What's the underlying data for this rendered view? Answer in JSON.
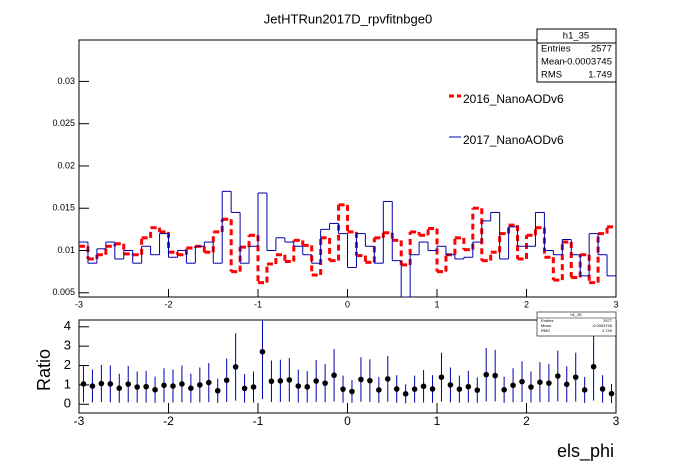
{
  "chart_data": [
    {
      "type": "histogram",
      "title": "JetHTRun2017D_rpvfitnbge0",
      "bins": [
        -3,
        -2.9,
        -2.8,
        -2.7,
        -2.6,
        -2.5,
        -2.4,
        -2.3,
        -2.2,
        -2.1,
        -2,
        -1.9,
        -1.8,
        -1.7,
        -1.6,
        -1.5,
        -1.4,
        -1.3,
        -1.2,
        -1.1,
        -1,
        -0.9,
        -0.8,
        -0.7,
        -0.6,
        -0.5,
        -0.4,
        -0.3,
        -0.2,
        -0.1,
        0,
        0.1,
        0.2,
        0.3,
        0.4,
        0.5,
        0.6,
        0.7,
        0.8,
        0.9,
        1,
        1.1,
        1.2,
        1.3,
        1.4,
        1.5,
        1.6,
        1.7,
        1.8,
        1.9,
        2,
        2.1,
        2.2,
        2.3,
        2.4,
        2.5,
        2.6,
        2.7,
        2.8,
        2.9,
        3
      ],
      "series": [
        {
          "name": "2016_NanoAODv6",
          "color": "#ff0000",
          "style": "dashed",
          "values": [
            0.0105,
            0.009,
            0.0095,
            0.0105,
            0.0108,
            0.0096,
            0.0095,
            0.0115,
            0.0127,
            0.0122,
            0.0098,
            0.0095,
            0.0103,
            0.0105,
            0.0098,
            0.0122,
            0.0137,
            0.0075,
            0.0104,
            0.0118,
            0.0062,
            0.0084,
            0.0095,
            0.0087,
            0.0112,
            0.0106,
            0.0071,
            0.0115,
            0.0088,
            0.0154,
            0.0122,
            0.0094,
            0.0086,
            0.0115,
            0.0121,
            0.0112,
            0.0083,
            0.0122,
            0.0118,
            0.0126,
            0.0075,
            0.0095,
            0.0115,
            0.0101,
            0.015,
            0.0088,
            0.0098,
            0.012,
            0.013,
            0.009,
            0.0118,
            0.0127,
            0.0092,
            0.0065,
            0.011,
            0.0068,
            0.0095,
            0.0062,
            0.012,
            0.0128
          ]
        },
        {
          "name": "2017_NanoAODv6",
          "color": "#0000aa",
          "style": "solid",
          "values": [
            0.011,
            0.0085,
            0.0102,
            0.011,
            0.009,
            0.01,
            0.0085,
            0.0105,
            0.0095,
            0.012,
            0.0092,
            0.01,
            0.0085,
            0.0105,
            0.011,
            0.0085,
            0.017,
            0.0145,
            0.0085,
            0.0105,
            0.0168,
            0.01,
            0.0115,
            0.011,
            0.0105,
            0.0095,
            0.0085,
            0.0125,
            0.0132,
            0.012,
            0.008,
            0.012,
            0.0105,
            0.0085,
            0.0158,
            0.0088,
            0.0045,
            0.0095,
            0.011,
            0.01,
            0.0105,
            0.0095,
            0.009,
            0.0092,
            0.011,
            0.0135,
            0.0145,
            0.009,
            0.0128,
            0.0105,
            0.0105,
            0.0145,
            0.01,
            0.0095,
            0.0113,
            0.0095,
            0.007,
            0.012,
            0.0095,
            0.007
          ]
        }
      ],
      "xlim": [
        -3,
        3
      ],
      "xticks": [
        -3,
        -2,
        -1,
        0,
        1,
        2,
        3
      ],
      "ylim": [
        0.0045,
        0.0349
      ],
      "yticks": [
        0.005,
        0.01,
        0.015,
        0.02,
        0.025,
        0.03
      ],
      "stats": {
        "title": "h1_35",
        "rows": [
          {
            "label": "Entries",
            "value": 2577
          },
          {
            "label": "Mean",
            "value": -0.0003745
          },
          {
            "label": "RMS",
            "value": 1.749
          }
        ]
      }
    },
    {
      "type": "errorbar",
      "ylabel": "Ratio",
      "xlabel": "els_phi",
      "x": [
        -2.95,
        -2.85,
        -2.75,
        -2.65,
        -2.55,
        -2.45,
        -2.35,
        -2.25,
        -2.15,
        -2.05,
        -1.95,
        -1.85,
        -1.75,
        -1.65,
        -1.55,
        -1.45,
        -1.35,
        -1.25,
        -1.15,
        -1.05,
        -0.95,
        -0.85,
        -0.75,
        -0.65,
        -0.55,
        -0.45,
        -0.35,
        -0.25,
        -0.15,
        -0.05,
        0.05,
        0.15,
        0.25,
        0.35,
        0.45,
        0.55,
        0.65,
        0.75,
        0.85,
        0.95,
        1.05,
        1.15,
        1.25,
        1.35,
        1.45,
        1.55,
        1.65,
        1.75,
        1.85,
        1.95,
        2.05,
        2.15,
        2.25,
        2.35,
        2.45,
        2.55,
        2.65,
        2.75,
        2.85,
        2.95
      ],
      "values": [
        1.05,
        0.94,
        1.07,
        1.05,
        0.83,
        1.04,
        0.89,
        0.91,
        0.75,
        0.98,
        0.94,
        1.05,
        0.83,
        1.0,
        1.12,
        0.7,
        1.24,
        1.93,
        0.82,
        0.89,
        2.71,
        1.19,
        1.21,
        1.26,
        0.94,
        0.9,
        1.2,
        1.09,
        1.5,
        0.78,
        0.66,
        1.28,
        1.22,
        0.74,
        1.31,
        0.79,
        0.54,
        0.78,
        0.93,
        0.79,
        1.4,
        1.0,
        0.78,
        0.91,
        0.73,
        1.53,
        1.48,
        0.75,
        0.98,
        1.17,
        0.89,
        1.14,
        1.09,
        1.46,
        1.03,
        1.4,
        0.74,
        1.94,
        0.79,
        0.55
      ],
      "errors": [
        0.95,
        0.85,
        0.96,
        0.95,
        0.75,
        0.94,
        0.8,
        0.82,
        0.68,
        0.88,
        0.85,
        0.95,
        0.75,
        0.9,
        1.01,
        0.63,
        1.12,
        1.74,
        0.74,
        0.8,
        2.44,
        1.07,
        1.09,
        1.13,
        0.85,
        0.81,
        1.08,
        0.98,
        1.35,
        0.7,
        0.59,
        1.15,
        1.1,
        0.67,
        1.18,
        0.71,
        0.49,
        0.7,
        0.84,
        0.71,
        1.26,
        0.9,
        0.7,
        0.82,
        0.66,
        1.38,
        1.33,
        0.68,
        0.88,
        1.05,
        0.8,
        1.03,
        0.98,
        1.31,
        0.93,
        1.26,
        0.67,
        1.75,
        0.71,
        0.5
      ],
      "color": "#0000aa",
      "marker_color": "#000000",
      "xlim": [
        -3,
        3
      ],
      "xticks": [
        -3,
        -2,
        -1,
        0,
        1,
        2,
        3
      ],
      "ylim": [
        -0.45,
        4.35
      ],
      "yticks": [
        0,
        1,
        2,
        3,
        4
      ]
    }
  ]
}
